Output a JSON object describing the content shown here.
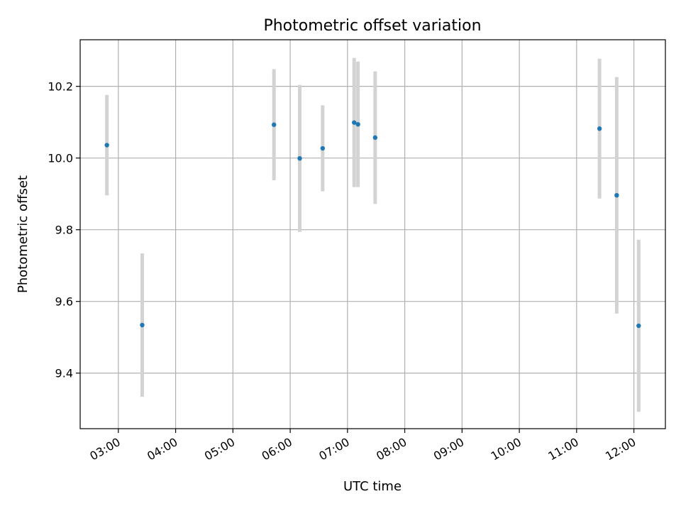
{
  "chart_data": {
    "type": "scatter",
    "title": "Photometric offset variation",
    "xlabel": "UTC time",
    "ylabel": "Photometric offset",
    "xlim": [
      "02:20",
      "12:33"
    ],
    "ylim": [
      9.245,
      10.33
    ],
    "x_ticks": [
      "03:00",
      "04:00",
      "05:00",
      "06:00",
      "07:00",
      "08:00",
      "09:00",
      "10:00",
      "11:00",
      "12:00"
    ],
    "y_ticks": [
      "9.4",
      "9.6",
      "9.8",
      "10.0",
      "10.2"
    ],
    "grid": true,
    "point_color": "#1f77b4",
    "errorbar_color": "#d3d3d3",
    "series": [
      {
        "points": [
          {
            "x": "02:48",
            "y": 10.036,
            "err": 0.14
          },
          {
            "x": "03:25",
            "y": 9.534,
            "err": 0.2
          },
          {
            "x": "05:43",
            "y": 10.093,
            "err": 0.155
          },
          {
            "x": "06:10",
            "y": 9.999,
            "err": 0.205
          },
          {
            "x": "06:34",
            "y": 10.027,
            "err": 0.12
          },
          {
            "x": "07:07",
            "y": 10.099,
            "err": 0.18
          },
          {
            "x": "07:11",
            "y": 10.094,
            "err": 0.175
          },
          {
            "x": "07:29",
            "y": 10.057,
            "err": 0.185
          },
          {
            "x": "11:24",
            "y": 10.082,
            "err": 0.195
          },
          {
            "x": "11:42",
            "y": 9.896,
            "err": 0.33
          },
          {
            "x": "12:05",
            "y": 9.532,
            "err": 0.24
          }
        ]
      }
    ]
  }
}
